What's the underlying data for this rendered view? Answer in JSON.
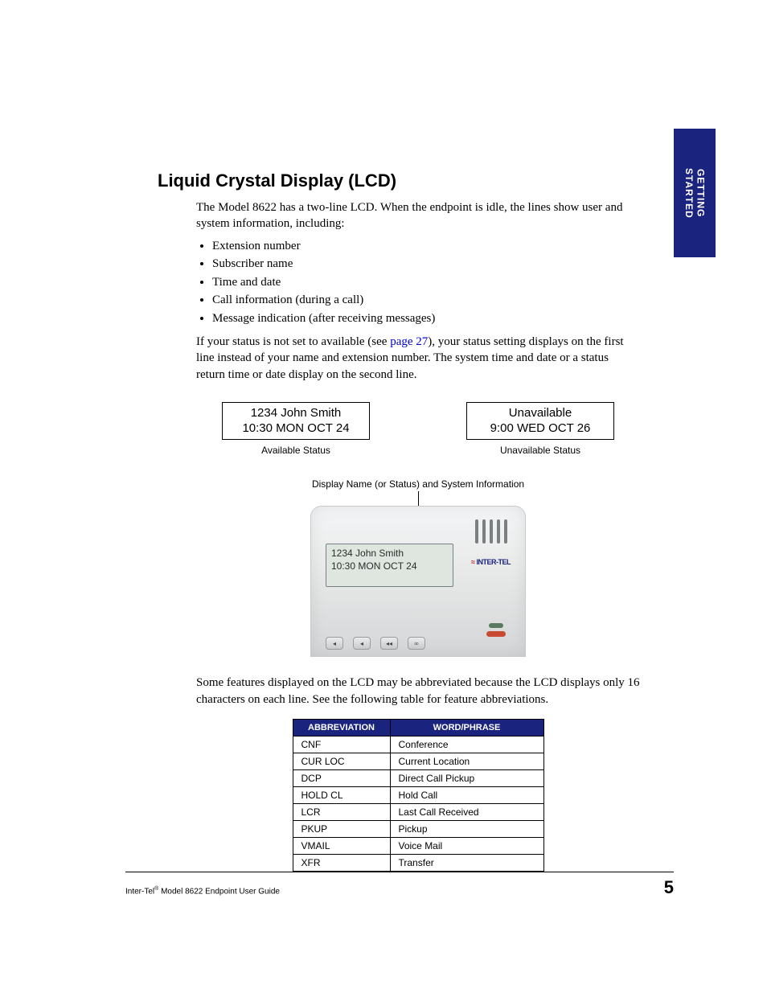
{
  "tab": {
    "line1": "GETTING",
    "line2": "STARTED",
    "bg_color": "#1a237e",
    "text_color": "#ffffff"
  },
  "title": "Liquid Crystal Display (LCD)",
  "intro": "The Model 8622 has a two-line LCD. When the endpoint is idle, the lines show user and system information, including:",
  "bullets": [
    "Extension number",
    "Subscriber name",
    "Time and date",
    "Call information (during a call)",
    "Message indication (after receiving messages)"
  ],
  "status_para_1": "If your status is not set to available (see ",
  "status_link": "page 27",
  "status_para_2": "), your status setting displays on the first line instead of your name and extension number. The system time and date or a status return time or date display on the second line.",
  "lcd_examples": {
    "available": {
      "line1": "1234  John Smith",
      "line2": "10:30 MON OCT 24",
      "caption": "Available Status"
    },
    "unavailable": {
      "line1": "Unavailable",
      "line2": "9:00 WED OCT 26",
      "caption": "Unavailable Status"
    }
  },
  "device_caption": "Display Name (or Status) and System Information",
  "device": {
    "screen_line1": "1234  John Smith",
    "screen_line2": "10:30 MON OCT 24",
    "brand": "INTER-TEL"
  },
  "char_limit_para": "Some features displayed on the LCD may be abbreviated because the LCD displays only 16 characters on each line. See the following table for feature abbreviations.",
  "table": {
    "headers": [
      "ABBREVIATION",
      "WORD/PHRASE"
    ],
    "rows": [
      [
        "CNF",
        "Conference"
      ],
      [
        "CUR LOC",
        "Current Location"
      ],
      [
        "DCP",
        "Direct Call Pickup"
      ],
      [
        "HOLD CL",
        "Hold Call"
      ],
      [
        "LCR",
        "Last Call Received"
      ],
      [
        "PKUP",
        "Pickup"
      ],
      [
        "VMAIL",
        "Voice Mail"
      ],
      [
        "XFR",
        "Transfer"
      ]
    ],
    "header_bg": "#1a237e",
    "header_fg": "#ffffff"
  },
  "footer": {
    "left_pre": "Inter-Tel",
    "left_sup": "®",
    "left_post": " Model 8622 Endpoint User Guide",
    "page": "5"
  }
}
